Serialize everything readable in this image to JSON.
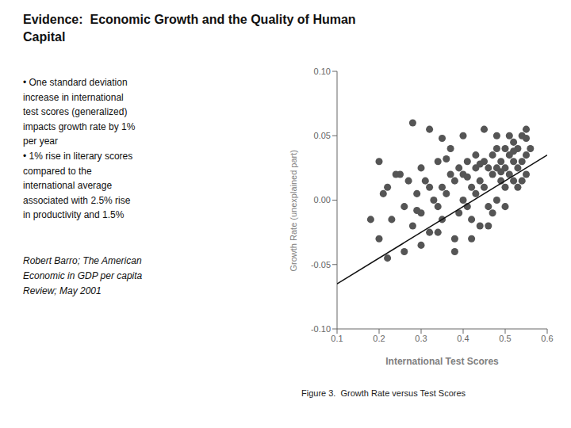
{
  "chart_data": {
    "type": "scatter",
    "title": "Evidence:  Economic Growth and the Quality of Human\nCapital",
    "annotations": [
      "• One standard deviation\nincrease in international\ntest scores (generalized)\nimpacts growth rate by 1%\nper year\n• 1% rise in literary scores\ncompared to the\ninternational average\nassociated with 2.5% rise\nin productivity and 1.5%",
      "Robert Barro; The American\nEconomic in GDP per capita\nReview; May 2001",
      "Figure 3.  Growth Rate versus Test Scores"
    ],
    "x_label": "International Test Scores",
    "y_label": "Growth Rate (unexplained part)",
    "xlim": [
      0.1,
      0.6
    ],
    "ylim": [
      -0.1,
      0.1
    ],
    "xticks": [
      0.1,
      0.2,
      0.3,
      0.4,
      0.5,
      0.6
    ],
    "yticks": [
      {
        "value": -0.1,
        "label": "-0.10"
      },
      {
        "value": -0.05,
        "label": "-0.05"
      },
      {
        "value": 0.0,
        "label": "0.00"
      },
      {
        "value": 0.05,
        "label": "0.05"
      },
      {
        "value": 0.1,
        "label": "0.10"
      }
    ],
    "grid": false,
    "series": [
      {
        "type": "scatter",
        "marker": "circle",
        "color": "#555555",
        "x": [
          0.18,
          0.2,
          0.21,
          0.22,
          0.23,
          0.25,
          0.26,
          0.27,
          0.28,
          0.29,
          0.3,
          0.3,
          0.31,
          0.32,
          0.32,
          0.33,
          0.34,
          0.34,
          0.35,
          0.35,
          0.36,
          0.37,
          0.38,
          0.38,
          0.39,
          0.39,
          0.4,
          0.4,
          0.41,
          0.41,
          0.42,
          0.42,
          0.43,
          0.43,
          0.44,
          0.44,
          0.45,
          0.45,
          0.46,
          0.46,
          0.47,
          0.47,
          0.47,
          0.48,
          0.48,
          0.48,
          0.49,
          0.49,
          0.5,
          0.5,
          0.5,
          0.5,
          0.51,
          0.51,
          0.51,
          0.52,
          0.52,
          0.52,
          0.53,
          0.53,
          0.53,
          0.54,
          0.54,
          0.54,
          0.55,
          0.55,
          0.55,
          0.56,
          0.28,
          0.32,
          0.35,
          0.4,
          0.45,
          0.22,
          0.26,
          0.3,
          0.34,
          0.38,
          0.42,
          0.46,
          0.37,
          0.43,
          0.48,
          0.2,
          0.24,
          0.29,
          0.36,
          0.41,
          0.44,
          0.49,
          0.52,
          0.55
        ],
        "values": [
          -0.015,
          -0.03,
          0.005,
          0.01,
          -0.015,
          0.02,
          -0.005,
          0.015,
          -0.02,
          0.005,
          -0.01,
          0.025,
          0.015,
          -0.025,
          0.01,
          0.0,
          -0.005,
          0.03,
          -0.015,
          0.01,
          0.005,
          0.02,
          -0.03,
          0.015,
          -0.01,
          0.025,
          0.0,
          0.02,
          -0.005,
          0.03,
          0.01,
          -0.015,
          0.025,
          0.005,
          -0.02,
          0.015,
          0.01,
          0.03,
          -0.005,
          0.025,
          0.02,
          -0.01,
          0.035,
          0.0,
          0.025,
          0.04,
          0.015,
          0.03,
          0.01,
          0.025,
          -0.005,
          0.04,
          0.02,
          0.035,
          0.05,
          0.015,
          0.03,
          0.045,
          0.025,
          0.04,
          0.01,
          0.03,
          0.05,
          0.015,
          0.035,
          0.055,
          0.02,
          0.04,
          0.06,
          0.055,
          0.048,
          0.05,
          0.055,
          -0.045,
          -0.04,
          -0.035,
          -0.025,
          -0.04,
          -0.03,
          -0.02,
          0.04,
          0.035,
          0.05,
          0.03,
          0.02,
          -0.008,
          0.032,
          0.018,
          0.028,
          0.022,
          0.038,
          0.048
        ]
      },
      {
        "type": "line",
        "line_style": "solid",
        "color": "#111111",
        "x": [
          0.1,
          0.6
        ],
        "values": [
          -0.065,
          0.035
        ]
      }
    ]
  }
}
